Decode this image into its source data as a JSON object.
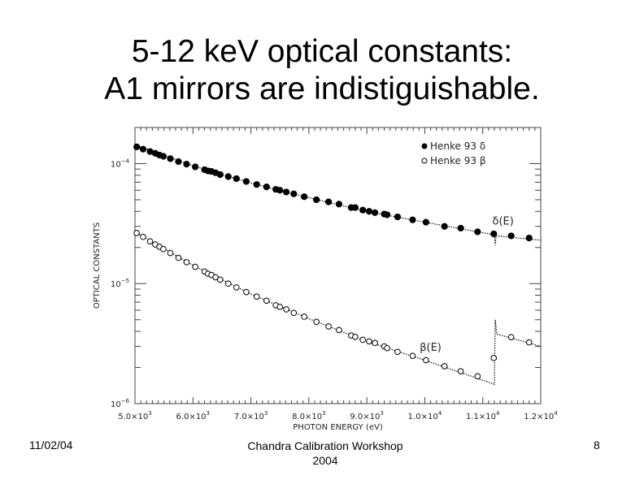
{
  "slide": {
    "title_line1": "5-12 keV optical constants:",
    "title_line2": "A1 mirrors are indistiguishable.",
    "footer_date": "11/02/04",
    "footer_center_line1": "Chandra Calibration Workshop",
    "footer_center_line2": "2004",
    "footer_page": "8"
  },
  "chart_data": {
    "type": "scatter",
    "title": "",
    "xlabel": "PHOTON ENERGY (eV)",
    "ylabel": "OPTICAL CONSTANTS",
    "xlim": [
      5000,
      12000
    ],
    "ylim": [
      1e-06,
      0.0002
    ],
    "yscale": "log",
    "x_ticks": [
      5000,
      6000,
      7000,
      8000,
      9000,
      10000,
      11000,
      12000
    ],
    "x_tick_labels": [
      [
        "5.0×10",
        "3"
      ],
      [
        "6.0×10",
        "3"
      ],
      [
        "7.0×10",
        "3"
      ],
      [
        "8.0×10",
        "3"
      ],
      [
        "9.0×10",
        "3"
      ],
      [
        "1.0×10",
        "4"
      ],
      [
        "1.1×10",
        "4"
      ],
      [
        "1.2×10",
        "4"
      ]
    ],
    "y_ticks": [
      1e-06,
      1e-05,
      0.0001
    ],
    "y_tick_labels": [
      [
        "10",
        "−6"
      ],
      [
        "10",
        "−5"
      ],
      [
        "10",
        "−4"
      ]
    ],
    "legend_position": "top-right",
    "x": [
      5030,
      5140,
      5260,
      5350,
      5420,
      5490,
      5610,
      5750,
      5890,
      6040,
      6200,
      6260,
      6320,
      6390,
      6470,
      6610,
      6750,
      6920,
      7100,
      7270,
      7430,
      7500,
      7610,
      7740,
      7920,
      8130,
      8340,
      8520,
      8730,
      8800,
      8930,
      9040,
      9140,
      9300,
      9350,
      9530,
      9790,
      10020,
      10340,
      10620,
      10910,
      11190,
      11490,
      11800
    ],
    "series": [
      {
        "name": "Henke 93 δ",
        "marker": "filled-circle",
        "values": [
          0.000138,
          0.000132,
          0.000126,
          0.000122,
          0.000118,
          0.000115,
          0.00011,
          0.000104,
          9.9e-05,
          9.4e-05,
          8.9e-05,
          8.7e-05,
          8.6e-05,
          8.4e-05,
          8.1e-05,
          7.8e-05,
          7.5e-05,
          7.1e-05,
          6.7e-05,
          6.4e-05,
          6.1e-05,
          6e-05,
          5.8e-05,
          5.6e-05,
          5.3e-05,
          5e-05,
          4.8e-05,
          4.6e-05,
          4.3e-05,
          4.3e-05,
          4.1e-05,
          4e-05,
          3.9e-05,
          3.8e-05,
          3.75e-05,
          3.6e-05,
          3.4e-05,
          3.25e-05,
          3e-05,
          2.9e-05,
          2.7e-05,
          2.6e-05,
          2.5e-05,
          2.4e-05
        ]
      },
      {
        "name": "Henke 93 β",
        "marker": "open-circle",
        "values": [
          2.64e-05,
          2.45e-05,
          2.25e-05,
          2.12e-05,
          2.03e-05,
          1.94e-05,
          1.8e-05,
          1.64e-05,
          1.51e-05,
          1.38e-05,
          1.26e-05,
          1.21e-05,
          1.18e-05,
          1.13e-05,
          1.08e-05,
          1e-05,
          9.3e-06,
          8.5e-06,
          7.8e-06,
          7.2e-06,
          6.6e-06,
          6.4e-06,
          6.1e-06,
          5.7e-06,
          5.3e-06,
          4.8e-06,
          4.4e-06,
          4.1e-06,
          3.7e-06,
          3.6e-06,
          3.4e-06,
          3.3e-06,
          3.2e-06,
          3e-06,
          2.9e-06,
          2.7e-06,
          2.5e-06,
          2.3e-06,
          2.05e-06,
          1.86e-06,
          1.69e-06,
          2.4e-06,
          3.58e-06,
          3.24e-06
        ]
      }
    ],
    "curves": [
      {
        "label": "δ(E)",
        "label_at": [
          11350,
          3.1e-05
        ],
        "x": [
          5000,
          6000,
          7000,
          8000,
          9000,
          10000,
          11200,
          11215,
          11230,
          12000
        ],
        "y": [
          0.000143,
          9.6e-05,
          6.9e-05,
          5.2e-05,
          4e-05,
          3.25e-05,
          2.55e-05,
          2.1e-05,
          2.5e-05,
          2.3e-05
        ]
      },
      {
        "label": "β(E)",
        "label_at": [
          10100,
          2.75e-06
        ],
        "x": [
          5000,
          6000,
          7000,
          8000,
          9000,
          10000,
          11200,
          11215,
          11240,
          12000
        ],
        "y": [
          2.7e-05,
          1.42e-05,
          8.2e-06,
          5.1e-06,
          3.3e-06,
          2.3e-06,
          1.45e-06,
          5e-06,
          3.8e-06,
          3e-06
        ]
      }
    ]
  }
}
